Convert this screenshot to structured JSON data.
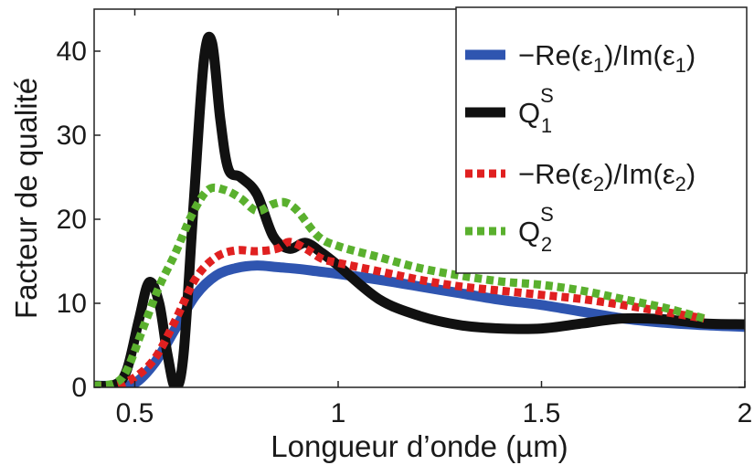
{
  "chart_data": {
    "type": "line",
    "title": "",
    "xlabel": "Longueur d’onde (µm)",
    "ylabel": "Facteur de qualité",
    "xlim": [
      0.4,
      2.0
    ],
    "ylim": [
      0,
      45
    ],
    "x_ticks": [
      0.5,
      1,
      1.5,
      2
    ],
    "x_tick_labels": [
      "0.5",
      "1",
      "1.5",
      "2"
    ],
    "y_ticks": [
      0,
      10,
      20,
      30,
      40
    ],
    "y_tick_labels": [
      "0",
      "10",
      "20",
      "30",
      "40"
    ],
    "grid": false,
    "legend_position": "top-right",
    "series": [
      {
        "id": "re1",
        "legend": {
          "main": "−Re(ε",
          "sub": "1",
          "mid": ")/Im(ε",
          "sub2": "1",
          "end": ")",
          "sup": ""
        },
        "color": "#2f55b0",
        "style": "solid",
        "points": [
          [
            0.4,
            0.2
          ],
          [
            0.45,
            0.2
          ],
          [
            0.5,
            0.5
          ],
          [
            0.55,
            3
          ],
          [
            0.6,
            7
          ],
          [
            0.65,
            11
          ],
          [
            0.7,
            13.3
          ],
          [
            0.75,
            14.2
          ],
          [
            0.8,
            14.5
          ],
          [
            0.85,
            14.3
          ],
          [
            0.9,
            14.1
          ],
          [
            0.95,
            13.8
          ],
          [
            1.0,
            13.5
          ],
          [
            1.1,
            12.8
          ],
          [
            1.2,
            12.0
          ],
          [
            1.3,
            11.2
          ],
          [
            1.4,
            10.4
          ],
          [
            1.5,
            9.8
          ],
          [
            1.6,
            9.0
          ],
          [
            1.7,
            8.2
          ],
          [
            1.8,
            7.7
          ],
          [
            1.9,
            7.4
          ],
          [
            2.0,
            7.2
          ]
        ]
      },
      {
        "id": "q1",
        "legend": {
          "main": "Q",
          "sub": "1",
          "mid": "",
          "sub2": "",
          "end": "",
          "sup": "S"
        },
        "color": "#111111",
        "style": "solid",
        "points": [
          [
            0.4,
            0.2
          ],
          [
            0.45,
            0.3
          ],
          [
            0.48,
            2
          ],
          [
            0.51,
            8
          ],
          [
            0.535,
            12.5
          ],
          [
            0.56,
            10
          ],
          [
            0.58,
            4
          ],
          [
            0.6,
            0
          ],
          [
            0.62,
            4
          ],
          [
            0.645,
            22
          ],
          [
            0.67,
            39
          ],
          [
            0.69,
            41
          ],
          [
            0.71,
            32
          ],
          [
            0.73,
            26
          ],
          [
            0.76,
            25
          ],
          [
            0.8,
            23
          ],
          [
            0.84,
            18
          ],
          [
            0.88,
            16.5
          ],
          [
            0.92,
            17.2
          ],
          [
            0.96,
            16
          ],
          [
            1.0,
            14.5
          ],
          [
            1.1,
            10.5
          ],
          [
            1.2,
            8.5
          ],
          [
            1.3,
            7.4
          ],
          [
            1.4,
            7.0
          ],
          [
            1.5,
            7.0
          ],
          [
            1.6,
            7.6
          ],
          [
            1.7,
            8.2
          ],
          [
            1.8,
            8.1
          ],
          [
            1.9,
            7.6
          ],
          [
            2.0,
            7.5
          ]
        ]
      },
      {
        "id": "re2",
        "legend": {
          "main": "−Re(ε",
          "sub": "2",
          "mid": ")/Im(ε",
          "sub2": "2",
          "end": ")",
          "sup": ""
        },
        "color": "#e02020",
        "style": "dotted",
        "points": [
          [
            0.4,
            0.2
          ],
          [
            0.45,
            0.2
          ],
          [
            0.5,
            1.2
          ],
          [
            0.55,
            3.5
          ],
          [
            0.6,
            8
          ],
          [
            0.65,
            13
          ],
          [
            0.7,
            15.5
          ],
          [
            0.75,
            16.3
          ],
          [
            0.8,
            16.2
          ],
          [
            0.85,
            16.5
          ],
          [
            0.88,
            17.3
          ],
          [
            0.92,
            16.5
          ],
          [
            0.96,
            15.3
          ],
          [
            1.0,
            14.8
          ],
          [
            1.1,
            13.8
          ],
          [
            1.2,
            12.8
          ],
          [
            1.3,
            12.0
          ],
          [
            1.4,
            11.5
          ],
          [
            1.5,
            11.0
          ],
          [
            1.6,
            10.5
          ],
          [
            1.7,
            9.8
          ],
          [
            1.8,
            9.0
          ],
          [
            1.9,
            8.2
          ]
        ]
      },
      {
        "id": "q2",
        "legend": {
          "main": "Q",
          "sub": "2",
          "mid": "",
          "sub2": "",
          "end": "",
          "sup": "S"
        },
        "color": "#5ab02e",
        "style": "dotted",
        "points": [
          [
            0.4,
            0.2
          ],
          [
            0.45,
            0.5
          ],
          [
            0.48,
            2
          ],
          [
            0.52,
            7
          ],
          [
            0.56,
            12
          ],
          [
            0.6,
            16
          ],
          [
            0.64,
            20.5
          ],
          [
            0.68,
            23.5
          ],
          [
            0.72,
            23.5
          ],
          [
            0.76,
            22.5
          ],
          [
            0.8,
            21
          ],
          [
            0.84,
            21.8
          ],
          [
            0.87,
            22
          ],
          [
            0.9,
            21
          ],
          [
            0.95,
            18
          ],
          [
            1.0,
            16.8
          ],
          [
            1.1,
            15.5
          ],
          [
            1.2,
            14.2
          ],
          [
            1.3,
            13.3
          ],
          [
            1.4,
            12.6
          ],
          [
            1.5,
            12.2
          ],
          [
            1.6,
            11.5
          ],
          [
            1.7,
            10.5
          ],
          [
            1.8,
            9.5
          ],
          [
            1.9,
            8.2
          ]
        ]
      }
    ]
  }
}
